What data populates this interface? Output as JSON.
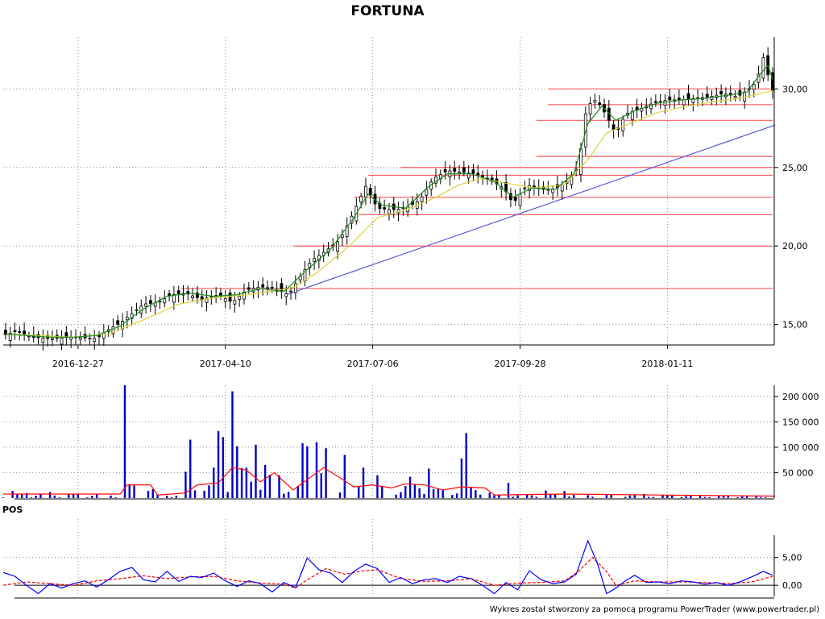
{
  "chart_data": [
    {
      "type": "candlestick",
      "title": "FORTUNA",
      "x_tick_labels": [
        "2016-12-27",
        "2017-04-10",
        "2017-07-06",
        "2017-09-28",
        "2018-01-11"
      ],
      "y_tick_labels": [
        "15,00",
        "20,00",
        "25,00",
        "30,00"
      ],
      "y_ticks": [
        15,
        20,
        25,
        30
      ],
      "ylim": [
        13.7,
        33.3
      ],
      "session_count": 330,
      "x_tick_sessions": [
        32,
        95,
        158,
        221,
        284
      ],
      "close_path": [
        [
          0,
          14.3
        ],
        [
          6,
          14.6
        ],
        [
          12,
          14.2
        ],
        [
          20,
          14.1
        ],
        [
          30,
          14.2
        ],
        [
          40,
          14.1
        ],
        [
          44,
          14.6
        ],
        [
          50,
          15.1
        ],
        [
          56,
          15.8
        ],
        [
          60,
          16.3
        ],
        [
          66,
          16.4
        ],
        [
          72,
          16.9
        ],
        [
          78,
          17.0
        ],
        [
          85,
          16.6
        ],
        [
          92,
          16.9
        ],
        [
          98,
          16.4
        ],
        [
          104,
          17.2
        ],
        [
          110,
          17.4
        ],
        [
          116,
          17.3
        ],
        [
          122,
          16.9
        ],
        [
          128,
          18.3
        ],
        [
          132,
          19.1
        ],
        [
          138,
          19.7
        ],
        [
          144,
          20.4
        ],
        [
          150,
          22.2
        ],
        [
          155,
          23.8
        ],
        [
          160,
          22.4
        ],
        [
          166,
          22.3
        ],
        [
          172,
          22.4
        ],
        [
          178,
          22.9
        ],
        [
          184,
          24.3
        ],
        [
          190,
          24.8
        ],
        [
          196,
          24.7
        ],
        [
          202,
          24.6
        ],
        [
          208,
          24.2
        ],
        [
          214,
          23.7
        ],
        [
          218,
          22.7
        ],
        [
          224,
          23.9
        ],
        [
          230,
          23.6
        ],
        [
          236,
          23.6
        ],
        [
          242,
          24.2
        ],
        [
          246,
          25.1
        ],
        [
          249,
          28.4
        ],
        [
          252,
          29.4
        ],
        [
          255,
          29.0
        ],
        [
          258,
          28.3
        ],
        [
          262,
          27.1
        ],
        [
          266,
          28.4
        ],
        [
          272,
          28.7
        ],
        [
          278,
          29.1
        ],
        [
          284,
          29.3
        ],
        [
          290,
          29.3
        ],
        [
          296,
          29.4
        ],
        [
          302,
          29.5
        ],
        [
          308,
          29.7
        ],
        [
          314,
          29.5
        ],
        [
          318,
          29.9
        ],
        [
          322,
          30.4
        ],
        [
          325,
          32.0
        ],
        [
          327,
          30.9
        ],
        [
          329,
          29.9
        ]
      ],
      "moving_average_short_path": [
        [
          0,
          14.4
        ],
        [
          10,
          14.3
        ],
        [
          20,
          14.2
        ],
        [
          30,
          14.2
        ],
        [
          40,
          14.3
        ],
        [
          50,
          14.9
        ],
        [
          60,
          16.0
        ],
        [
          70,
          16.8
        ],
        [
          80,
          17.0
        ],
        [
          90,
          16.8
        ],
        [
          100,
          16.9
        ],
        [
          110,
          17.3
        ],
        [
          120,
          17.1
        ],
        [
          130,
          18.5
        ],
        [
          140,
          19.8
        ],
        [
          150,
          21.8
        ],
        [
          156,
          23.3
        ],
        [
          162,
          22.6
        ],
        [
          172,
          22.4
        ],
        [
          182,
          23.8
        ],
        [
          190,
          24.6
        ],
        [
          200,
          24.6
        ],
        [
          210,
          24.1
        ],
        [
          218,
          23.1
        ],
        [
          226,
          23.7
        ],
        [
          236,
          23.6
        ],
        [
          244,
          24.6
        ],
        [
          250,
          27.8
        ],
        [
          256,
          28.9
        ],
        [
          262,
          28.0
        ],
        [
          270,
          28.6
        ],
        [
          280,
          29.1
        ],
        [
          290,
          29.3
        ],
        [
          300,
          29.4
        ],
        [
          310,
          29.6
        ],
        [
          318,
          29.8
        ],
        [
          324,
          31.0
        ],
        [
          327,
          31.5
        ],
        [
          329,
          30.6
        ]
      ],
      "moving_average_long_path": [
        [
          0,
          14.4
        ],
        [
          15,
          14.3
        ],
        [
          30,
          14.2
        ],
        [
          45,
          14.4
        ],
        [
          60,
          15.3
        ],
        [
          75,
          16.3
        ],
        [
          90,
          16.7
        ],
        [
          105,
          16.9
        ],
        [
          118,
          17.2
        ],
        [
          125,
          17.4
        ],
        [
          135,
          18.4
        ],
        [
          148,
          20.0
        ],
        [
          160,
          21.8
        ],
        [
          172,
          22.3
        ],
        [
          185,
          23.1
        ],
        [
          195,
          23.9
        ],
        [
          205,
          24.3
        ],
        [
          215,
          24.0
        ],
        [
          228,
          23.7
        ],
        [
          240,
          23.9
        ],
        [
          250,
          25.5
        ],
        [
          258,
          27.2
        ],
        [
          268,
          27.8
        ],
        [
          280,
          28.5
        ],
        [
          292,
          28.9
        ],
        [
          305,
          29.2
        ],
        [
          318,
          29.5
        ],
        [
          329,
          29.9
        ]
      ],
      "trend_line": [
        [
          121,
          16.9
        ],
        [
          330,
          27.7
        ]
      ],
      "support_resistance_levels": [
        {
          "value": 30.0,
          "from": 233
        },
        {
          "value": 29.0,
          "from": 233
        },
        {
          "value": 28.0,
          "from": 228
        },
        {
          "value": 25.7,
          "from": 228
        },
        {
          "value": 25.0,
          "from": 170
        },
        {
          "value": 24.5,
          "from": 156
        },
        {
          "value": 23.1,
          "from": 150
        },
        {
          "value": 22.0,
          "from": 152
        },
        {
          "value": 20.0,
          "from": 124
        },
        {
          "value": 17.3,
          "from": 76
        }
      ],
      "candle_range_estimate": 0.55,
      "colors": {
        "candle": "#000000",
        "short_ma": "#1e8c1e",
        "long_ma": "#dcd23c",
        "trend_line": "#5a5adc",
        "levels": "#ff5a5a"
      }
    },
    {
      "type": "bar",
      "name_shown": "",
      "y_tick_labels": [
        "50 000",
        "100 000",
        "150 000",
        "200 000"
      ],
      "y_ticks": [
        50000,
        100000,
        150000,
        200000
      ],
      "ylim": [
        0,
        222000
      ],
      "volume_spikes": [
        [
          5,
          14000
        ],
        [
          10,
          10000
        ],
        [
          20,
          12000
        ],
        [
          53,
          222000
        ],
        [
          78,
          52000
        ],
        [
          81,
          115000
        ],
        [
          90,
          60000
        ],
        [
          93,
          132000
        ],
        [
          95,
          120000
        ],
        [
          98,
          210000
        ],
        [
          101,
          102000
        ],
        [
          105,
          60000
        ],
        [
          109,
          105000
        ],
        [
          113,
          65000
        ],
        [
          118,
          45000
        ],
        [
          128,
          108000
        ],
        [
          131,
          102000
        ],
        [
          135,
          110000
        ],
        [
          138,
          98000
        ],
        [
          146,
          85000
        ],
        [
          154,
          60000
        ],
        [
          160,
          45000
        ],
        [
          174,
          42000
        ],
        [
          182,
          58000
        ],
        [
          196,
          78000
        ],
        [
          198,
          128000
        ],
        [
          216,
          30000
        ],
        [
          233,
          15000
        ],
        [
          240,
          14000
        ],
        [
          275,
          8000
        ],
        [
          295,
          6000
        ]
      ],
      "volume_average_path": [
        [
          0,
          8000
        ],
        [
          50,
          8000
        ],
        [
          53,
          26000
        ],
        [
          63,
          26000
        ],
        [
          66,
          6000
        ],
        [
          78,
          10000
        ],
        [
          83,
          26000
        ],
        [
          92,
          30000
        ],
        [
          98,
          60000
        ],
        [
          104,
          55000
        ],
        [
          110,
          32000
        ],
        [
          116,
          50000
        ],
        [
          124,
          16000
        ],
        [
          131,
          40000
        ],
        [
          137,
          60000
        ],
        [
          144,
          40000
        ],
        [
          150,
          22000
        ],
        [
          158,
          26000
        ],
        [
          166,
          20000
        ],
        [
          172,
          28000
        ],
        [
          180,
          26000
        ],
        [
          188,
          16000
        ],
        [
          196,
          22000
        ],
        [
          206,
          20000
        ],
        [
          210,
          6000
        ],
        [
          240,
          8000
        ],
        [
          280,
          6000
        ],
        [
          330,
          4000
        ]
      ],
      "colors": {
        "bars": "#0000c8",
        "average": "#ff0000"
      }
    },
    {
      "type": "line",
      "panel_label": "POS",
      "y_tick_labels": [
        "0,00",
        "5,00"
      ],
      "y_ticks": [
        0,
        5
      ],
      "ylim": [
        -2,
        9
      ],
      "oscillator_path": [
        [
          0,
          2.3
        ],
        [
          5,
          1.6
        ],
        [
          10,
          0.0
        ],
        [
          15,
          -1.5
        ],
        [
          20,
          0.3
        ],
        [
          25,
          -0.5
        ],
        [
          30,
          0.3
        ],
        [
          35,
          0.8
        ],
        [
          40,
          -0.3
        ],
        [
          45,
          1.0
        ],
        [
          50,
          2.5
        ],
        [
          55,
          3.2
        ],
        [
          60,
          1.0
        ],
        [
          65,
          0.6
        ],
        [
          70,
          2.5
        ],
        [
          75,
          0.7
        ],
        [
          80,
          1.6
        ],
        [
          85,
          1.4
        ],
        [
          90,
          2.2
        ],
        [
          95,
          0.8
        ],
        [
          100,
          -0.2
        ],
        [
          105,
          0.8
        ],
        [
          110,
          0.3
        ],
        [
          115,
          -1.2
        ],
        [
          120,
          0.5
        ],
        [
          125,
          -0.4
        ],
        [
          130,
          4.9
        ],
        [
          135,
          2.8
        ],
        [
          140,
          2.2
        ],
        [
          145,
          0.5
        ],
        [
          150,
          2.5
        ],
        [
          155,
          3.8
        ],
        [
          160,
          3.0
        ],
        [
          165,
          0.5
        ],
        [
          170,
          1.4
        ],
        [
          175,
          0.3
        ],
        [
          180,
          1.0
        ],
        [
          185,
          1.2
        ],
        [
          190,
          0.5
        ],
        [
          195,
          1.6
        ],
        [
          200,
          1.2
        ],
        [
          205,
          0.0
        ],
        [
          210,
          -1.5
        ],
        [
          215,
          0.5
        ],
        [
          220,
          -0.8
        ],
        [
          225,
          2.6
        ],
        [
          230,
          1.0
        ],
        [
          235,
          0.3
        ],
        [
          240,
          0.6
        ],
        [
          245,
          2.0
        ],
        [
          250,
          8.0
        ],
        [
          254,
          4.0
        ],
        [
          258,
          -1.5
        ],
        [
          262,
          -0.5
        ],
        [
          266,
          0.8
        ],
        [
          270,
          1.8
        ],
        [
          275,
          0.5
        ],
        [
          280,
          0.6
        ],
        [
          285,
          0.3
        ],
        [
          290,
          0.8
        ],
        [
          295,
          0.6
        ],
        [
          300,
          0.2
        ],
        [
          305,
          0.5
        ],
        [
          310,
          0.0
        ],
        [
          315,
          0.6
        ],
        [
          320,
          1.5
        ],
        [
          325,
          2.5
        ],
        [
          329,
          1.8
        ]
      ],
      "signal_path": [
        [
          0,
          0.0
        ],
        [
          10,
          0.6
        ],
        [
          20,
          0.3
        ],
        [
          30,
          0.0
        ],
        [
          40,
          0.8
        ],
        [
          50,
          1.2
        ],
        [
          60,
          1.7
        ],
        [
          70,
          1.2
        ],
        [
          80,
          1.5
        ],
        [
          90,
          1.6
        ],
        [
          100,
          0.8
        ],
        [
          110,
          0.4
        ],
        [
          120,
          0.2
        ],
        [
          125,
          -0.5
        ],
        [
          130,
          1.0
        ],
        [
          138,
          3.0
        ],
        [
          146,
          2.0
        ],
        [
          154,
          2.6
        ],
        [
          160,
          2.8
        ],
        [
          170,
          1.2
        ],
        [
          180,
          0.7
        ],
        [
          190,
          0.8
        ],
        [
          200,
          1.2
        ],
        [
          210,
          0.0
        ],
        [
          220,
          0.4
        ],
        [
          230,
          0.5
        ],
        [
          240,
          0.8
        ],
        [
          246,
          2.5
        ],
        [
          252,
          5.0
        ],
        [
          258,
          2.5
        ],
        [
          262,
          0.0
        ],
        [
          270,
          0.8
        ],
        [
          280,
          0.6
        ],
        [
          290,
          0.6
        ],
        [
          300,
          0.5
        ],
        [
          310,
          0.3
        ],
        [
          320,
          0.6
        ],
        [
          329,
          1.6
        ]
      ],
      "colors": {
        "oscillator": "#0000ff",
        "signal": "#ff0000"
      }
    }
  ],
  "footer": {
    "text": "Wykres został stworzony za pomocą programu PowerTrader (www.powertrader.pl)"
  }
}
